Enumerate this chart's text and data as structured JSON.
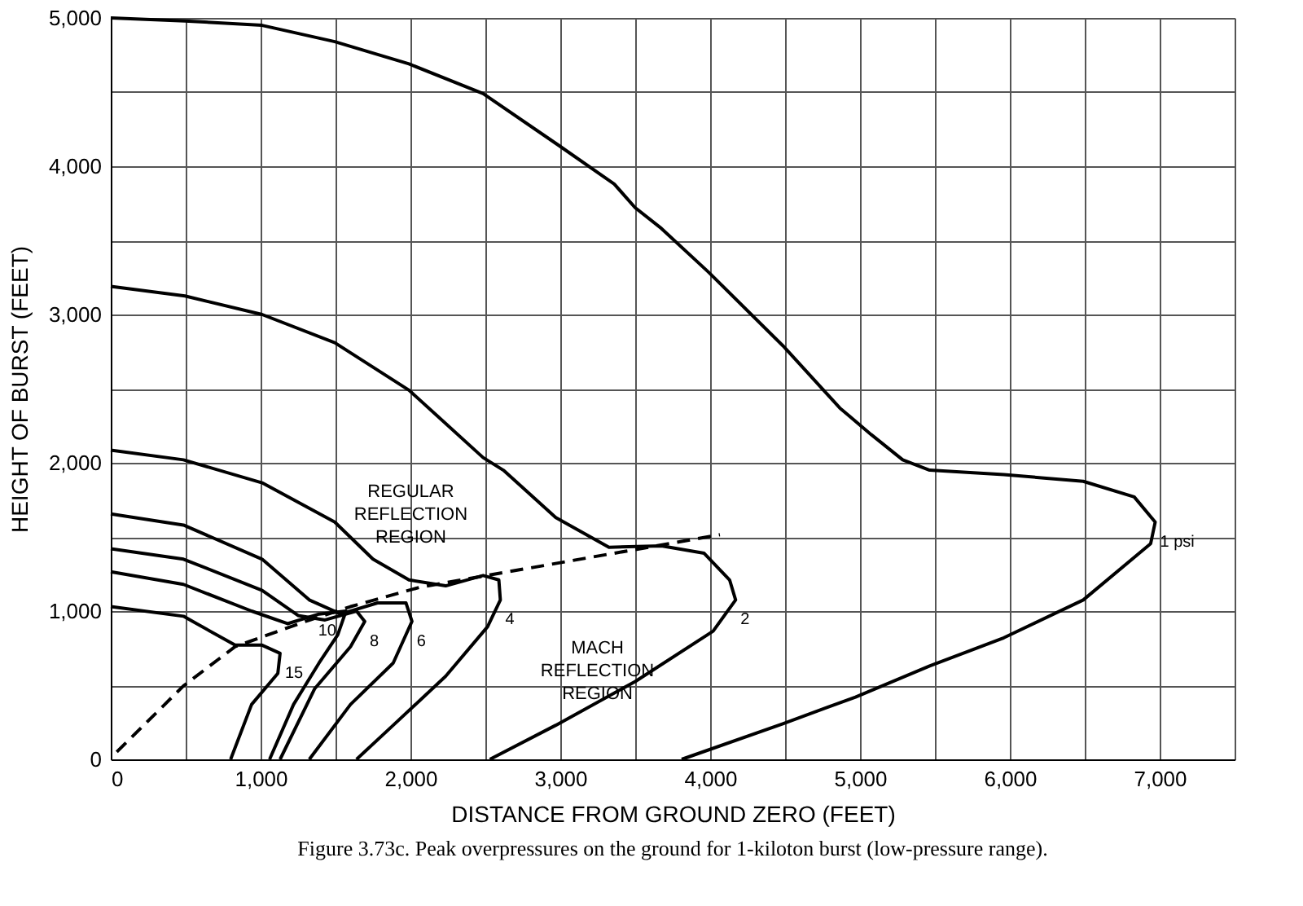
{
  "chart_data": {
    "type": "line",
    "xlabel": "DISTANCE FROM GROUND ZERO (FEET)",
    "ylabel": "HEIGHT OF BURST (FEET)",
    "xlim": [
      0,
      7500
    ],
    "ylim": [
      0,
      5000
    ],
    "xticks": [
      0,
      {
        "value": 500,
        "label": null
      },
      {
        "value": 1000,
        "label": "1,000"
      },
      {
        "value": 1500,
        "label": null
      },
      {
        "value": 2000,
        "label": "2,000"
      },
      {
        "value": 2500,
        "label": null
      },
      {
        "value": 3000,
        "label": "3,000"
      },
      {
        "value": 3500,
        "label": null
      },
      {
        "value": 4000,
        "label": "4,000"
      },
      {
        "value": 4500,
        "label": null
      },
      {
        "value": 5000,
        "label": "5,000"
      },
      {
        "value": 5500,
        "label": null
      },
      {
        "value": 6000,
        "label": "6,000"
      },
      {
        "value": 6500,
        "label": null
      },
      {
        "value": 7000,
        "label": "7,000"
      },
      {
        "value": 7500,
        "label": null
      }
    ],
    "yticks": [
      0,
      {
        "value": 500,
        "label": null
      },
      {
        "value": 1000,
        "label": "1,000"
      },
      {
        "value": 1500,
        "label": null
      },
      {
        "value": 2000,
        "label": "2,000"
      },
      {
        "value": 2500,
        "label": null
      },
      {
        "value": 3000,
        "label": "3,000"
      },
      {
        "value": 3500,
        "label": null
      },
      {
        "value": 4000,
        "label": "4,000"
      },
      {
        "value": 4500,
        "label": null
      },
      {
        "value": 5000,
        "label": "5,000"
      }
    ],
    "grid": true,
    "marker": "none",
    "series": [
      {
        "name": "1 psi",
        "color": "#000000",
        "line_style": "solid",
        "x": [
          0,
          495,
          1010,
          1495,
          1990,
          2485,
          2990,
          3360,
          3500,
          3675,
          3990,
          4485,
          4865,
          5075,
          5285,
          5465,
          5960,
          6490,
          6830,
          6970,
          6940,
          6490,
          5960,
          5465,
          4970,
          4485,
          3810
        ],
        "values": [
          5000,
          4980,
          4950,
          4840,
          4690,
          4490,
          4140,
          3880,
          3720,
          3580,
          3285,
          2790,
          2370,
          2190,
          2020,
          1950,
          1920,
          1875,
          1770,
          1600,
          1455,
          1075,
          820,
          630,
          420,
          240,
          0
        ]
      },
      {
        "name": "2",
        "color": "#000000",
        "line_style": "solid",
        "x": [
          0,
          495,
          1010,
          1495,
          1990,
          2485,
          2620,
          2970,
          3325,
          3675,
          3960,
          4130,
          4170,
          4020,
          3500,
          2970,
          2530
        ],
        "values": [
          3190,
          3125,
          3000,
          2810,
          2490,
          2035,
          1950,
          1630,
          1430,
          1440,
          1390,
          1210,
          1075,
          865,
          525,
          230,
          0
        ]
      },
      {
        "name": "4",
        "color": "#000000",
        "line_style": "solid",
        "x": [
          0,
          485,
          1010,
          1495,
          1750,
          1990,
          2235,
          2485,
          2590,
          2600,
          2515,
          2235,
          1885,
          1640
        ],
        "values": [
          2085,
          2020,
          1865,
          1600,
          1350,
          1210,
          1170,
          1240,
          1210,
          1075,
          895,
          560,
          230,
          0
        ]
      },
      {
        "name": "6",
        "color": "#000000",
        "line_style": "solid",
        "x": [
          0,
          485,
          1010,
          1325,
          1535,
          1780,
          1970,
          2010,
          1885,
          1600,
          1325
        ],
        "values": [
          1655,
          1580,
          1350,
          1075,
          980,
          1055,
          1055,
          930,
          650,
          370,
          0
        ]
      },
      {
        "name": "8",
        "color": "#000000",
        "line_style": "solid",
        "x": [
          0,
          485,
          1010,
          1250,
          1430,
          1640,
          1695,
          1600,
          1360,
          1130
        ],
        "values": [
          1420,
          1350,
          1140,
          970,
          940,
          1000,
          930,
          760,
          475,
          0
        ]
      },
      {
        "name": "10",
        "color": "#000000",
        "line_style": "solid",
        "x": [
          0,
          485,
          940,
          1180,
          1390,
          1570,
          1515,
          1390,
          1220,
          1060
        ],
        "values": [
          1265,
          1180,
          1000,
          915,
          980,
          1000,
          840,
          650,
          370,
          0
        ]
      },
      {
        "name": "15",
        "color": "#000000",
        "line_style": "solid",
        "x": [
          0,
          485,
          830,
          1010,
          1130,
          1115,
          940,
          800
        ],
        "values": [
          1030,
          965,
          770,
          770,
          715,
          580,
          370,
          0
        ]
      },
      {
        "color": "#000000",
        "line_style": "dashed",
        "x": [
          40,
          485,
          830,
          1285,
          1600,
          2060,
          4065
        ],
        "values": [
          50,
          495,
          760,
          925,
          1030,
          1160,
          1515
        ]
      }
    ],
    "annotations": [
      "REGULAR\nREFLECTION\nREGION",
      "MACH\nREFLECTION\nREGION",
      "Figure 3.73c.    Peak overpressures on the ground for 1-kiloton burst (low-pressure range)."
    ]
  }
}
